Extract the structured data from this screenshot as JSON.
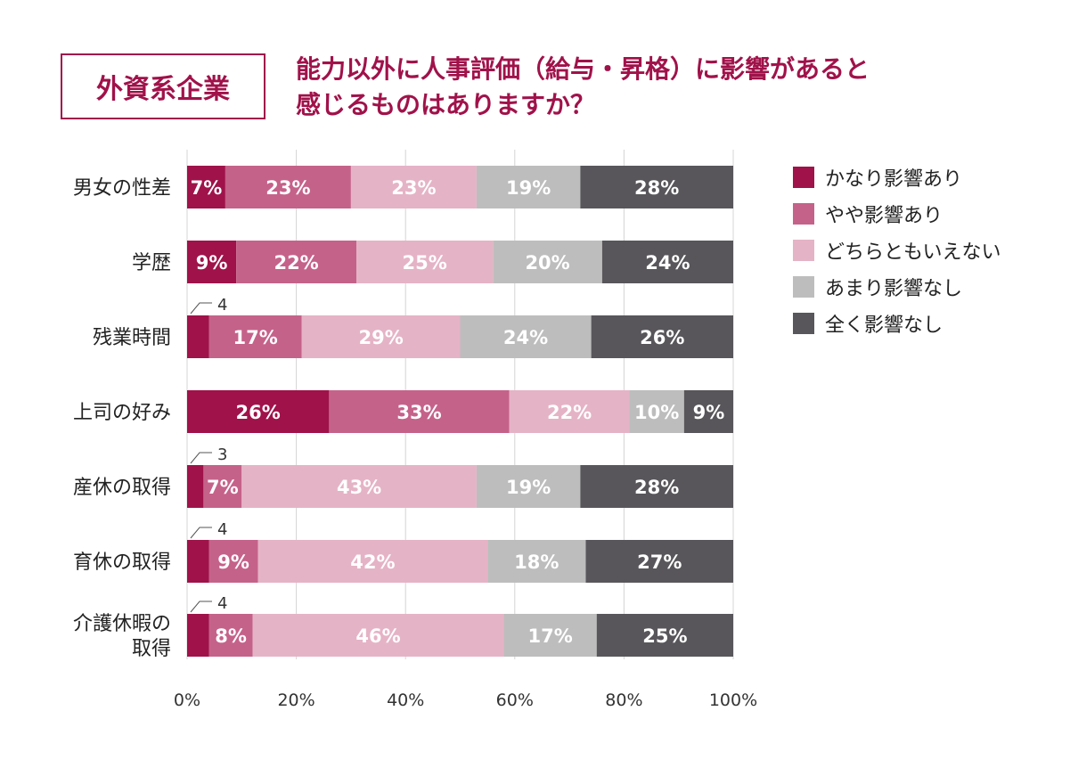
{
  "header": {
    "tag": "外資系企業",
    "title_line1": "能力以外に人事評価（給与・昇格）に影響があると",
    "title_line2": "感じるものはありますか？"
  },
  "chart_data": {
    "type": "bar",
    "orientation": "horizontal",
    "stacked": true,
    "categories": [
      [
        "男女の性差"
      ],
      [
        "学歴"
      ],
      [
        "残業時間"
      ],
      [
        "上司の好み"
      ],
      [
        "産休の取得"
      ],
      [
        "育休の取得"
      ],
      [
        "介護休暇の",
        "取得"
      ]
    ],
    "series": [
      {
        "name": "かなり影響あり",
        "color": "#a0124a",
        "values": [
          7,
          9,
          4,
          26,
          3,
          4,
          4
        ],
        "labels": [
          "7%",
          "9%",
          "4",
          "26%",
          "3",
          "4",
          "4"
        ]
      },
      {
        "name": "やや影響あり",
        "color": "#c5628a",
        "values": [
          23,
          22,
          17,
          33,
          7,
          9,
          8
        ],
        "labels": [
          "23%",
          "22%",
          "17%",
          "33%",
          "7%",
          "9%",
          "8%"
        ]
      },
      {
        "name": "どちらともいえない",
        "color": "#e5b3c6",
        "values": [
          23,
          25,
          29,
          22,
          43,
          42,
          46
        ],
        "labels": [
          "23%",
          "25%",
          "29%",
          "22%",
          "43%",
          "42%",
          "46%"
        ]
      },
      {
        "name": "あまり影響なし",
        "color": "#bdbdbd",
        "values": [
          19,
          20,
          24,
          10,
          19,
          18,
          17
        ],
        "labels": [
          "19%",
          "20%",
          "24%",
          "10%",
          "19%",
          "18%",
          "17%"
        ]
      },
      {
        "name": "全く影響なし",
        "color": "#58565a",
        "values": [
          28,
          24,
          26,
          9,
          28,
          27,
          25
        ],
        "labels": [
          "28%",
          "24%",
          "26%",
          "9%",
          "28%",
          "27%",
          "25%"
        ]
      }
    ],
    "outside_labels": [
      false,
      false,
      true,
      false,
      true,
      true,
      true
    ],
    "xlim": [
      0,
      100
    ],
    "xticks": [
      "0%",
      "20%",
      "40%",
      "60%",
      "80%",
      "100%"
    ],
    "grid": true,
    "legend_position": "right"
  }
}
